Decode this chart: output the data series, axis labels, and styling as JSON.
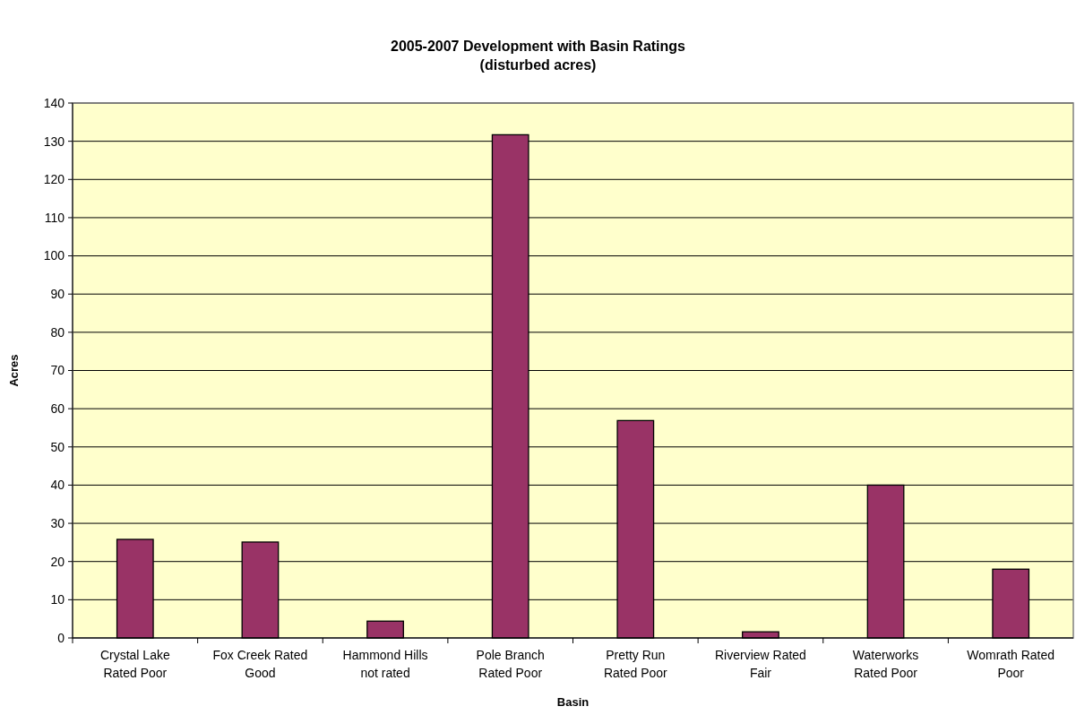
{
  "chart_data": {
    "type": "bar",
    "title": "2005-2007 Development with Basin Ratings",
    "subtitle": "(disturbed acres)",
    "xlabel": "Basin",
    "ylabel": "Acres",
    "categories": [
      "Crystal Lake Rated Poor",
      "Fox Creek Rated Good",
      "Hammond Hills not rated",
      "Pole Branch Rated Poor",
      "Pretty Run Rated Poor",
      "Riverview Rated Fair",
      "Waterworks Rated Poor",
      "Womrath Rated Poor"
    ],
    "values": [
      25.8,
      25.1,
      4.4,
      131.7,
      56.9,
      1.6,
      40.0,
      18.0
    ],
    "color": "#993366",
    "ylim": [
      0,
      140
    ],
    "yticks": [
      0,
      10,
      20,
      30,
      40,
      50,
      60,
      70,
      80,
      90,
      100,
      110,
      120,
      130,
      140
    ],
    "grid": "y"
  }
}
